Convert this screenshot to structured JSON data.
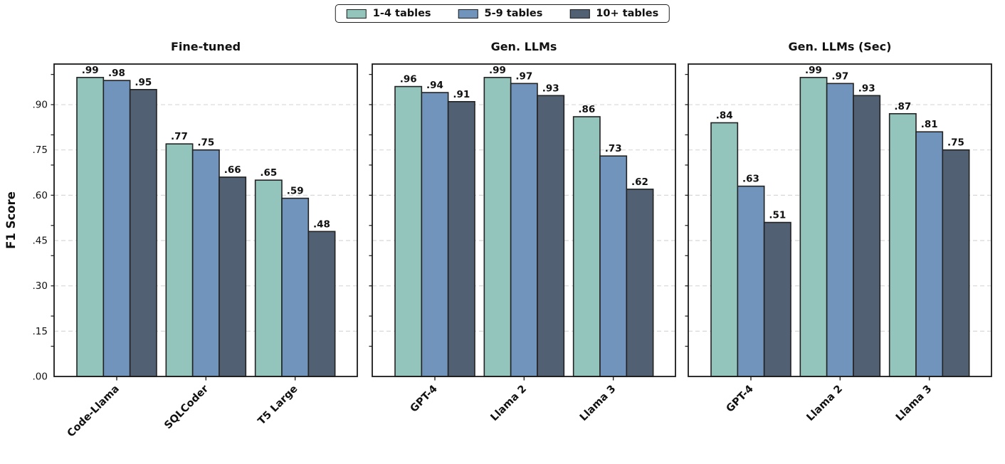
{
  "figure": {
    "ylabel": "F1 Score",
    "ytick_labels": [
      ".00",
      ".15",
      ".30",
      ".45",
      ".60",
      ".75",
      ".90"
    ]
  },
  "legend": {
    "items": [
      {
        "label": "1-4 tables",
        "color": "#93c5bc"
      },
      {
        "label": "5-9 tables",
        "color": "#7194bd"
      },
      {
        "label": "10+ tables",
        "color": "#516173"
      }
    ]
  },
  "chart_data": [
    {
      "type": "bar",
      "title": "Fine-tuned",
      "categories": [
        "Code-Llama",
        "SQLCoder",
        "T5 Large"
      ],
      "series": [
        {
          "name": "1-4 tables",
          "values": [
            0.99,
            0.77,
            0.65
          ]
        },
        {
          "name": "5-9 tables",
          "values": [
            0.98,
            0.75,
            0.59
          ]
        },
        {
          "name": "10+ tables",
          "values": [
            0.95,
            0.66,
            0.48
          ]
        }
      ],
      "xlabel": "",
      "ylabel": "F1 Score",
      "ylim": [
        0,
        1.035
      ],
      "yticks": [
        0,
        0.15,
        0.3,
        0.45,
        0.6,
        0.75,
        0.9
      ],
      "ytick_labels": [
        ".00",
        ".15",
        ".30",
        ".45",
        ".60",
        ".75",
        ".90"
      ],
      "bar_labels": [
        [
          ".99",
          ".77",
          ".65"
        ],
        [
          ".98",
          ".75",
          ".59"
        ],
        [
          ".95",
          ".66",
          ".48"
        ]
      ],
      "grid": "horizontal-dashed",
      "legend_position": "top-center-above-figure"
    },
    {
      "type": "bar",
      "title": "Gen. LLMs",
      "categories": [
        "GPT-4",
        "Llama 2",
        "Llama 3"
      ],
      "series": [
        {
          "name": "1-4 tables",
          "values": [
            0.96,
            0.99,
            0.86
          ]
        },
        {
          "name": "5-9 tables",
          "values": [
            0.94,
            0.97,
            0.73
          ]
        },
        {
          "name": "10+ tables",
          "values": [
            0.91,
            0.93,
            0.62
          ]
        }
      ],
      "xlabel": "",
      "ylabel": "",
      "ylim": [
        0,
        1.035
      ],
      "yticks": [
        0,
        0.15,
        0.3,
        0.45,
        0.6,
        0.75,
        0.9
      ],
      "ytick_labels": [],
      "bar_labels": [
        [
          ".96",
          ".99",
          ".86"
        ],
        [
          ".94",
          ".97",
          ".73"
        ],
        [
          ".91",
          ".93",
          ".62"
        ]
      ],
      "grid": "horizontal-dashed",
      "legend_position": "none"
    },
    {
      "type": "bar",
      "title": "Gen. LLMs (Sec)",
      "categories": [
        "GPT-4",
        "Llama 2",
        "Llama 3"
      ],
      "series": [
        {
          "name": "1-4 tables",
          "values": [
            0.84,
            0.99,
            0.87
          ]
        },
        {
          "name": "5-9 tables",
          "values": [
            0.63,
            0.97,
            0.81
          ]
        },
        {
          "name": "10+ tables",
          "values": [
            0.51,
            0.93,
            0.75
          ]
        }
      ],
      "xlabel": "",
      "ylabel": "",
      "ylim": [
        0,
        1.035
      ],
      "yticks": [
        0,
        0.15,
        0.3,
        0.45,
        0.6,
        0.75,
        0.9
      ],
      "ytick_labels": [],
      "bar_labels": [
        [
          ".84",
          ".99",
          ".87"
        ],
        [
          ".63",
          ".97",
          ".81"
        ],
        [
          ".51",
          ".93",
          ".75"
        ]
      ],
      "grid": "horizontal-dashed",
      "legend_position": "none"
    }
  ]
}
